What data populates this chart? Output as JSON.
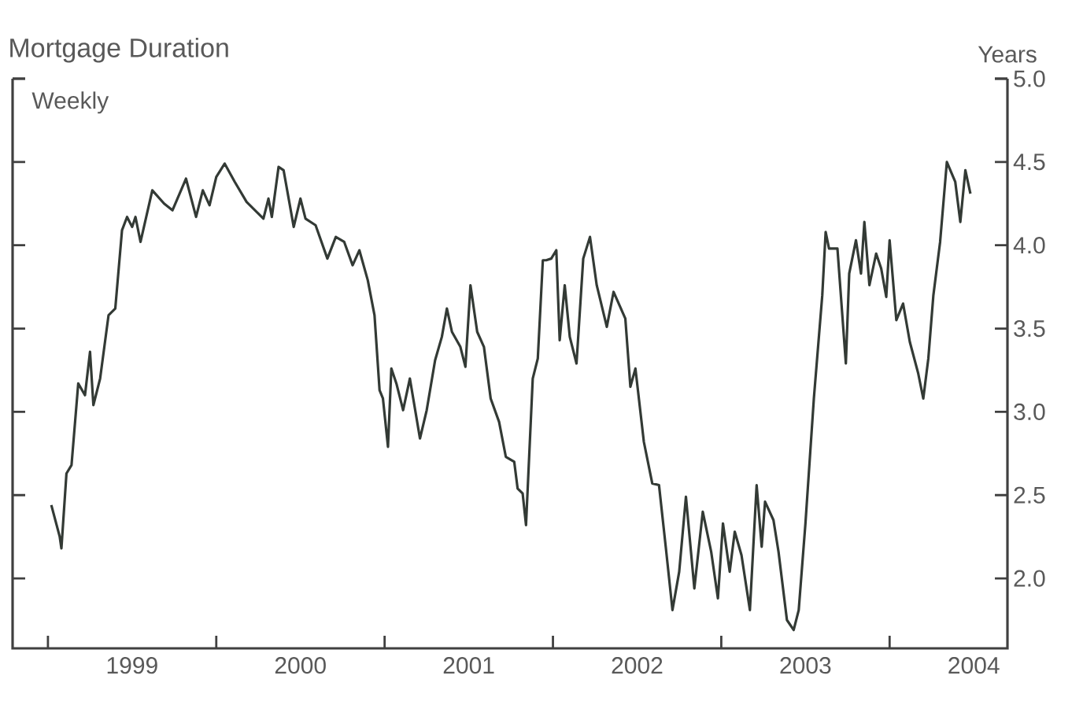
{
  "chart_data": {
    "type": "line",
    "title": "Mortgage Duration",
    "ylabel": "Years",
    "annotations": [
      "Weekly"
    ],
    "xlim": [
      1998.79,
      2004.7
    ],
    "ylim": [
      1.58,
      5.0
    ],
    "xticks": [
      {
        "value": 1999,
        "label": null
      },
      {
        "value": 1999.5,
        "label": "1999"
      },
      {
        "value": 2000,
        "label": null
      },
      {
        "value": 2000.5,
        "label": "2000"
      },
      {
        "value": 2001,
        "label": null
      },
      {
        "value": 2001.5,
        "label": "2001"
      },
      {
        "value": 2002,
        "label": null
      },
      {
        "value": 2002.5,
        "label": "2002"
      },
      {
        "value": 2003,
        "label": null
      },
      {
        "value": 2003.5,
        "label": "2003"
      },
      {
        "value": 2004,
        "label": null
      },
      {
        "value": 2004.5,
        "label": "2004"
      }
    ],
    "yticks": [
      {
        "value": 2.0,
        "label": "2.0"
      },
      {
        "value": 2.5,
        "label": "2.5"
      },
      {
        "value": 3.0,
        "label": "3.0"
      },
      {
        "value": 3.5,
        "label": "3.5"
      },
      {
        "value": 4.0,
        "label": "4.0"
      },
      {
        "value": 4.5,
        "label": "4.5"
      },
      {
        "value": 5.0,
        "label": "5.0"
      }
    ],
    "grid": false,
    "legend": false,
    "marker": "none",
    "line_style": "solid",
    "series": [
      {
        "color": "#333a35",
        "x": [
          1999.02,
          1999.07,
          1999.08,
          1999.11,
          1999.14,
          1999.18,
          1999.22,
          1999.25,
          1999.27,
          1999.31,
          1999.36,
          1999.4,
          1999.44,
          1999.47,
          1999.5,
          1999.52,
          1999.55,
          1999.62,
          1999.69,
          1999.74,
          1999.82,
          1999.88,
          1999.92,
          1999.96,
          2000.0,
          2000.05,
          2000.11,
          2000.18,
          2000.28,
          2000.31,
          2000.33,
          2000.37,
          2000.4,
          2000.46,
          2000.5,
          2000.53,
          2000.59,
          2000.66,
          2000.71,
          2000.76,
          2000.81,
          2000.85,
          2000.9,
          2000.94,
          2000.97,
          2000.99,
          2001.02,
          2001.04,
          2001.07,
          2001.11,
          2001.15,
          2001.21,
          2001.25,
          2001.3,
          2001.34,
          2001.37,
          2001.4,
          2001.45,
          2001.48,
          2001.51,
          2001.55,
          2001.59,
          2001.63,
          2001.68,
          2001.72,
          2001.77,
          2001.79,
          2001.82,
          2001.84,
          2001.88,
          2001.91,
          2001.94,
          2001.96,
          2001.99,
          2002.02,
          2002.04,
          2002.07,
          2002.1,
          2002.14,
          2002.18,
          2002.22,
          2002.26,
          2002.32,
          2002.36,
          2002.43,
          2002.46,
          2002.49,
          2002.54,
          2002.59,
          2002.63,
          2002.67,
          2002.71,
          2002.75,
          2002.79,
          2002.84,
          2002.89,
          2002.94,
          2002.98,
          2003.01,
          2003.05,
          2003.08,
          2003.12,
          2003.17,
          2003.21,
          2003.24,
          2003.26,
          2003.31,
          2003.34,
          2003.39,
          2003.43,
          2003.46,
          2003.5,
          2003.55,
          2003.6,
          2003.62,
          2003.64,
          2003.69,
          2003.74,
          2003.76,
          2003.8,
          2003.83,
          2003.85,
          2003.88,
          2003.92,
          2003.95,
          2003.98,
          2004.0,
          2004.04,
          2004.08,
          2004.12,
          2004.17,
          2004.2,
          2004.23,
          2004.26,
          2004.3,
          2004.34,
          2004.39,
          2004.42,
          2004.45,
          2004.48
        ],
        "values": [
          2.44,
          2.25,
          2.18,
          2.63,
          2.68,
          3.17,
          3.1,
          3.36,
          3.04,
          3.2,
          3.58,
          3.62,
          4.09,
          4.17,
          4.11,
          4.17,
          4.02,
          4.33,
          4.25,
          4.21,
          4.4,
          4.17,
          4.33,
          4.24,
          4.41,
          4.49,
          4.38,
          4.26,
          4.16,
          4.28,
          4.17,
          4.47,
          4.45,
          4.11,
          4.28,
          4.16,
          4.12,
          3.92,
          4.05,
          4.02,
          3.88,
          3.97,
          3.79,
          3.58,
          3.13,
          3.08,
          2.79,
          3.26,
          3.17,
          3.01,
          3.2,
          2.84,
          3.01,
          3.31,
          3.45,
          3.62,
          3.48,
          3.39,
          3.27,
          3.76,
          3.48,
          3.39,
          3.08,
          2.94,
          2.73,
          2.7,
          2.54,
          2.51,
          2.32,
          3.2,
          3.32,
          3.91,
          3.91,
          3.92,
          3.97,
          3.43,
          3.76,
          3.45,
          3.29,
          3.92,
          4.05,
          3.76,
          3.51,
          3.72,
          3.56,
          3.15,
          3.26,
          2.82,
          2.57,
          2.56,
          2.19,
          1.81,
          2.04,
          2.49,
          1.94,
          2.4,
          2.16,
          1.88,
          2.33,
          2.04,
          2.28,
          2.14,
          1.81,
          2.56,
          2.19,
          2.46,
          2.35,
          2.16,
          1.75,
          1.69,
          1.81,
          2.33,
          3.08,
          3.7,
          4.08,
          3.98,
          3.98,
          3.29,
          3.83,
          4.03,
          3.83,
          4.14,
          3.76,
          3.95,
          3.86,
          3.69,
          4.03,
          3.55,
          3.65,
          3.42,
          3.23,
          3.08,
          3.32,
          3.7,
          4.02,
          4.5,
          4.38,
          4.14,
          4.45,
          4.31
        ]
      }
    ]
  }
}
